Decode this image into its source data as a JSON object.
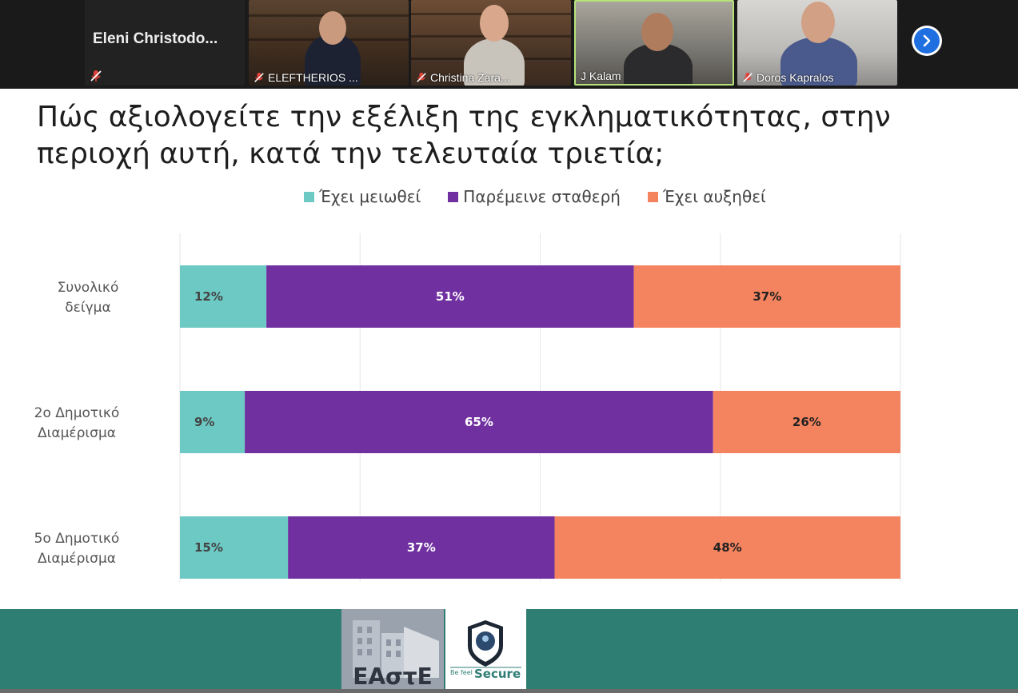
{
  "participants": [
    {
      "name": "Eleni  Christodo...",
      "muted": true
    },
    {
      "name": "ELEFTHERIOS ...",
      "muted": true
    },
    {
      "name": "Christina Zara...",
      "muted": true
    },
    {
      "name": "J Kalam",
      "muted": false
    },
    {
      "name": "Doros Kapralos",
      "muted": true
    }
  ],
  "slide": {
    "title_line1": "Πώς αξιολογείτε την εξέλιξη της εγκληματικότητας, στην",
    "title_line2": "περιοχή αυτή, κατά την τελευταία τριετία;"
  },
  "chart_data": {
    "type": "bar",
    "orientation": "horizontal",
    "stacked": true,
    "categories": [
      [
        "Συνολικό",
        "δείγμα"
      ],
      [
        "2ο Δημοτικό",
        "Διαμέρισμα"
      ],
      [
        "5ο Δημοτικό",
        "Διαμέρισμα"
      ]
    ],
    "series": [
      {
        "name": "Έχει μειωθεί",
        "values": [
          12,
          9,
          15
        ],
        "labels": [
          "12%",
          "9%",
          "15%"
        ],
        "color": "#6cc9c4",
        "label_color": "#444444"
      },
      {
        "name": "Παρέμεινε σταθερή",
        "values": [
          51,
          65,
          37
        ],
        "labels": [
          "51%",
          "65%",
          "37%"
        ],
        "color": "#7030a0",
        "label_color": "#ffffff"
      },
      {
        "name": "Έχει αυξηθεί",
        "values": [
          37,
          26,
          48
        ],
        "labels": [
          "37%",
          "26%",
          "48%"
        ],
        "color": "#f4845f",
        "label_color": "#222222"
      }
    ],
    "xlim": [
      0,
      100
    ],
    "grid": true,
    "legend": "top"
  },
  "footer": {
    "logo_left_text": "ΕΑστΕ",
    "logo_right_text": "Secure",
    "logo_right_small": "Be feel"
  },
  "colors": {
    "footer_bg": "#2f7e74",
    "next_button": "#1f6fe0"
  }
}
